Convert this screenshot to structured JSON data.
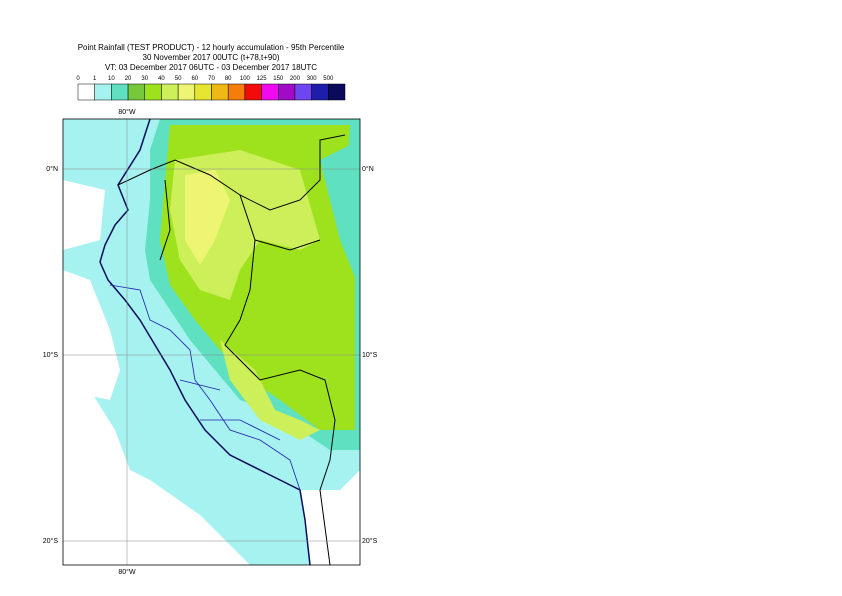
{
  "header": {
    "title": "Point Rainfall (TEST PRODUCT) - 12 hourly accumulation - 95th Percentile",
    "subtitle": "30 November 2017 00UTC (t+78,t+90)",
    "valid_time": "VT: 03 December 2017 06UTC - 03 December 2017 18UTC"
  },
  "colorbar": {
    "levels": [
      0,
      1,
      10,
      20,
      30,
      40,
      50,
      60,
      70,
      80,
      100,
      125,
      150,
      200,
      300,
      500
    ],
    "colors": [
      "#ffffff",
      "#a6f2f0",
      "#5fe0c0",
      "#78c83c",
      "#9ee21e",
      "#cdf05a",
      "#eef572",
      "#e6e632",
      "#f0b814",
      "#f57d0a",
      "#f50a0a",
      "#f00af0",
      "#a00ac8",
      "#6e46f0",
      "#1e1eaa",
      "#0a0a5a"
    ]
  },
  "map": {
    "top_lon_label": "80°W",
    "bottom_lon_label": "80°W",
    "lat_labels": [
      {
        "left": "0°N",
        "right": "0°N"
      },
      {
        "left": "10°S",
        "right": "10°S"
      },
      {
        "left": "20°S",
        "right": "20°S"
      }
    ]
  }
}
